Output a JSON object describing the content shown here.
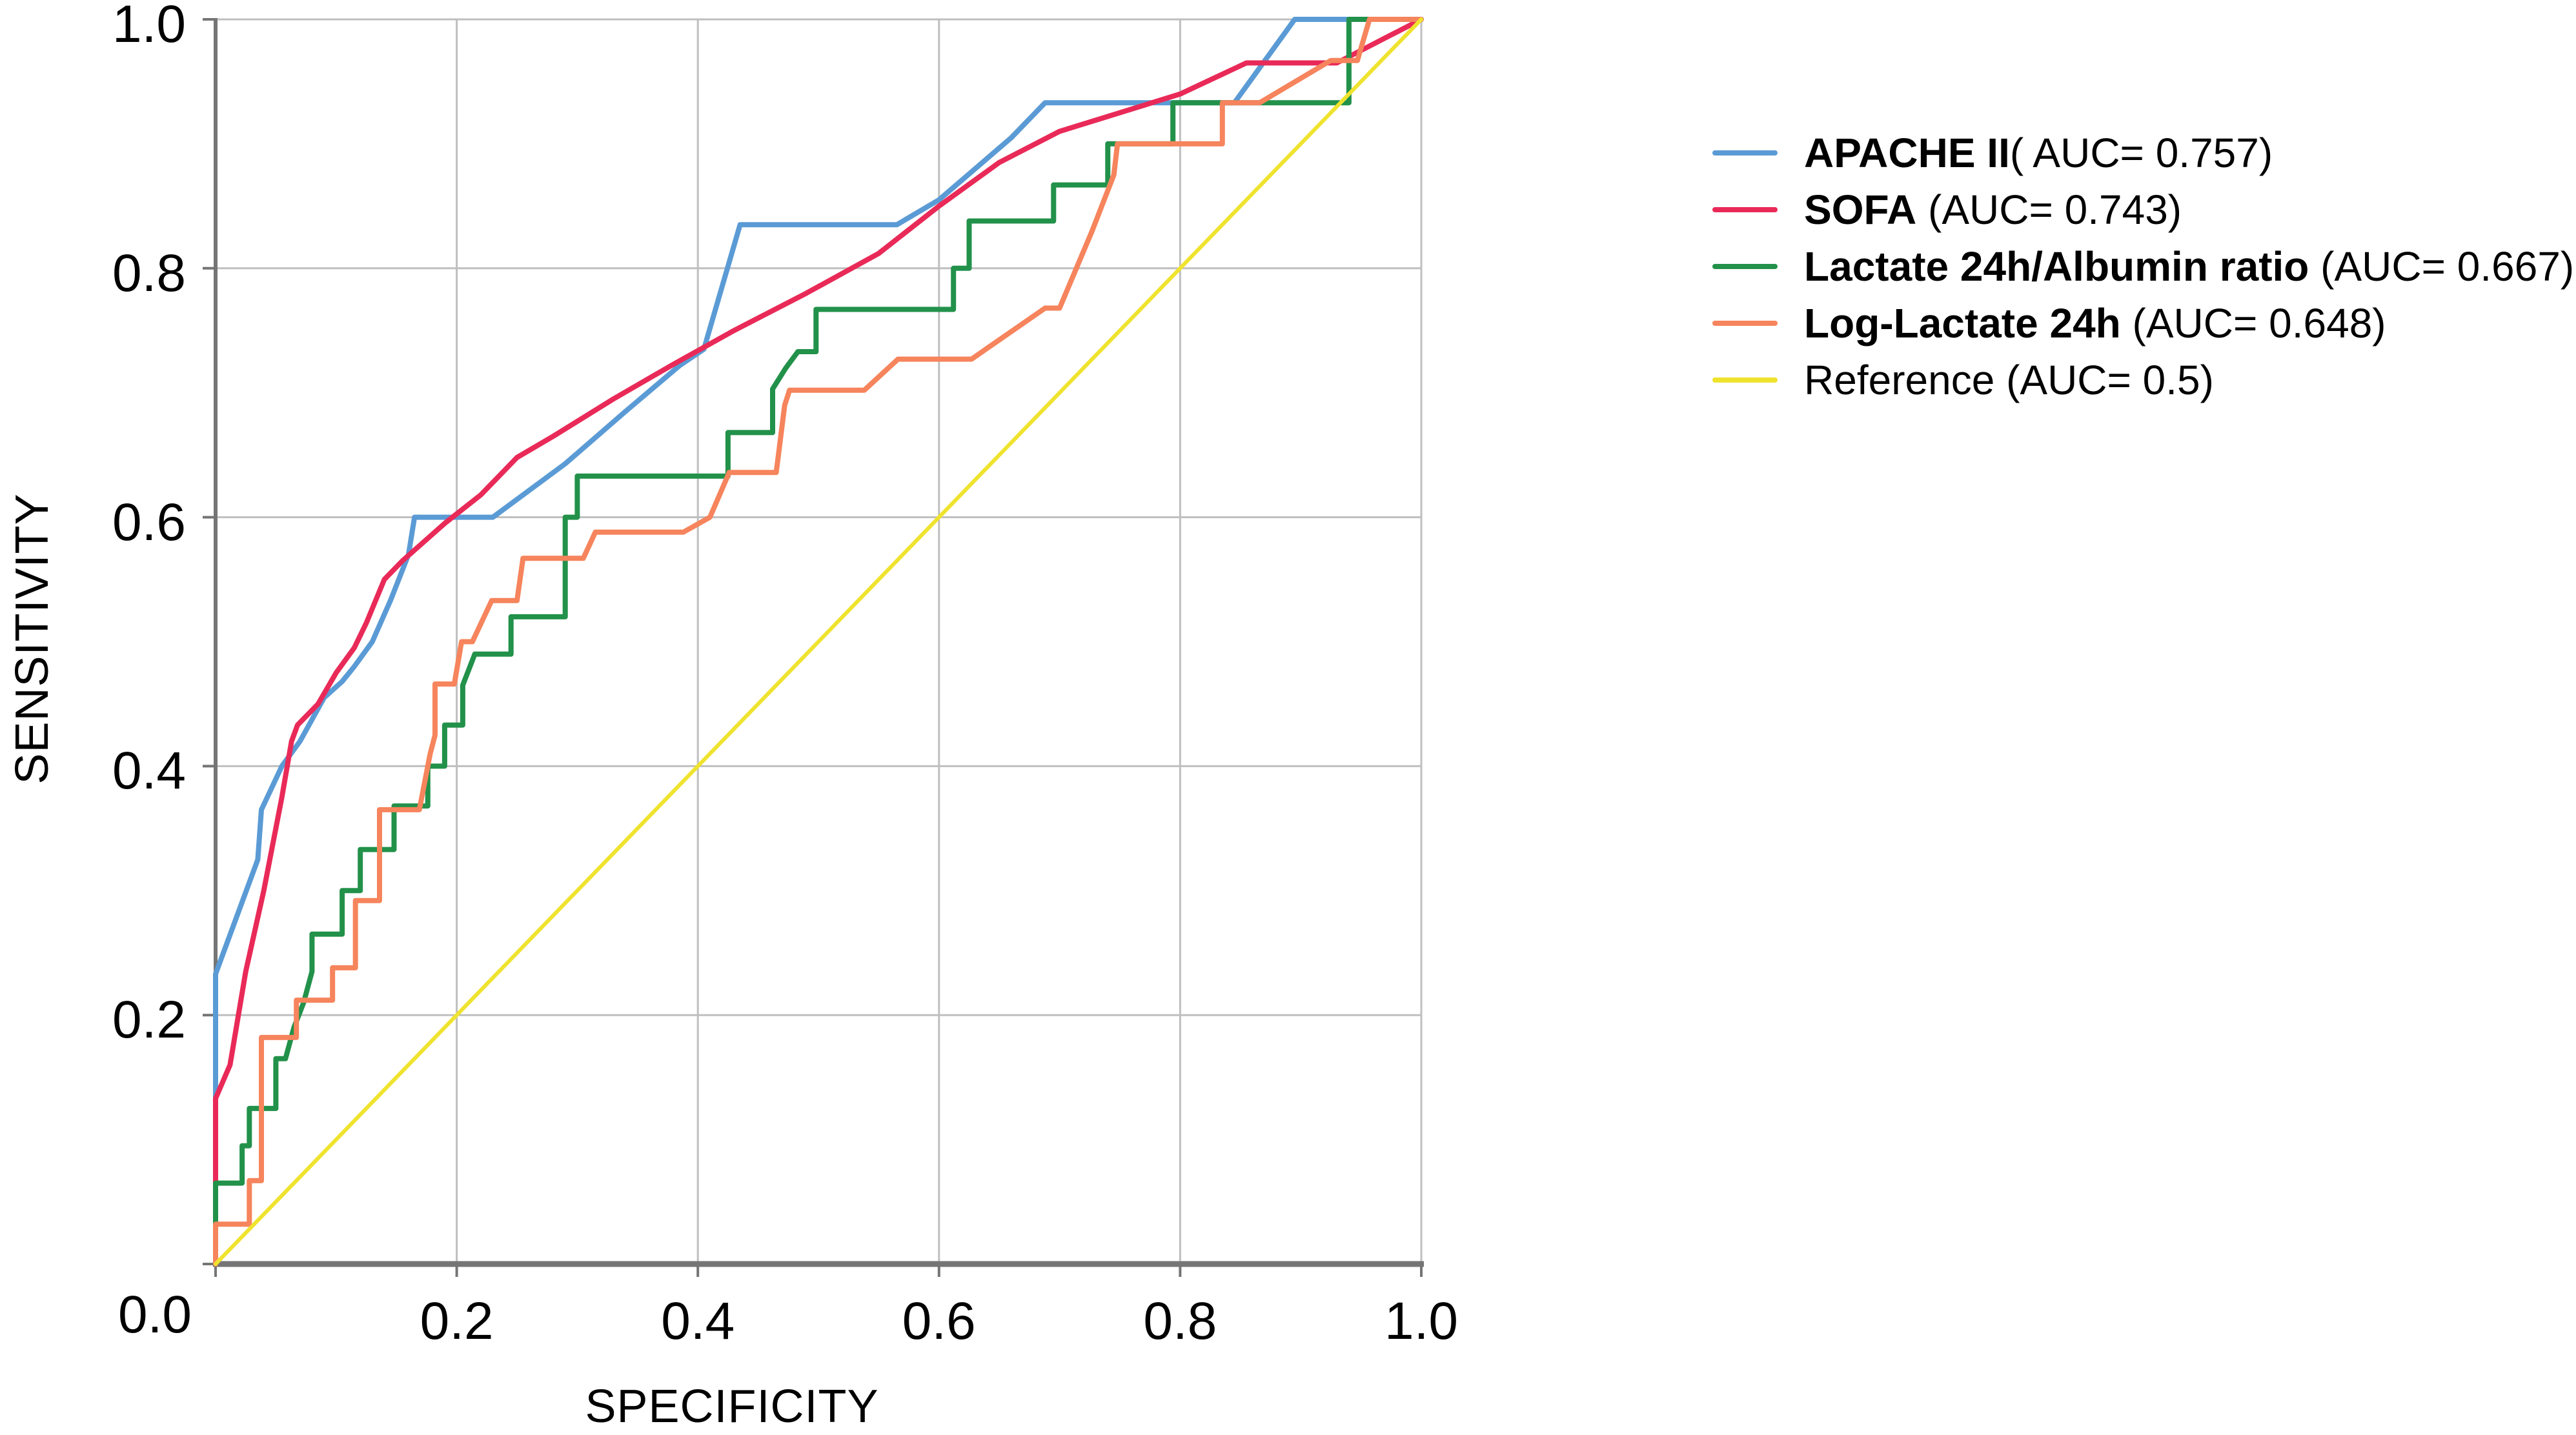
{
  "figure": {
    "background": "#ffffff",
    "kind": "ROC curve comparison plot"
  },
  "chart_data": {
    "type": "line",
    "subtype": "roc-curves",
    "title": "",
    "xlabel": "SPECIFICITY",
    "ylabel": "SENSITIVITY",
    "xlim": [
      0,
      1
    ],
    "ylim": [
      0,
      1
    ],
    "grid": true,
    "x_tick_labels": [
      "0.2",
      "0.4",
      "0.6",
      "0.8",
      "1.0"
    ],
    "x_tick_values": [
      0.2,
      0.4,
      0.6,
      0.8,
      1.0
    ],
    "y_tick_labels": [
      "1.0",
      "0.8",
      "0.6",
      "0.4",
      "0.2"
    ],
    "y_tick_values": [
      1.0,
      0.8,
      0.6,
      0.4,
      0.2
    ],
    "origin_label": "0.0",
    "legend_position": "right-outside",
    "colors": {
      "grid": "#bfbfbf",
      "axis": "#757575",
      "text": "#000000",
      "background": "#ffffff"
    },
    "series": [
      {
        "name": "APACHE II",
        "auc": 0.757,
        "legend_bold": "APACHE II",
        "legend_rest": "( AUC= 0.757)",
        "color": "#5b9bd5",
        "stroke_width": 8,
        "points": [
          [
            0,
            0
          ],
          [
            0,
            0.233
          ],
          [
            0.035,
            0.325
          ],
          [
            0.038,
            0.365
          ],
          [
            0.055,
            0.4
          ],
          [
            0.07,
            0.42
          ],
          [
            0.09,
            0.455
          ],
          [
            0.105,
            0.468
          ],
          [
            0.115,
            0.48
          ],
          [
            0.13,
            0.5
          ],
          [
            0.145,
            0.533
          ],
          [
            0.16,
            0.57
          ],
          [
            0.165,
            0.6
          ],
          [
            0.23,
            0.6
          ],
          [
            0.29,
            0.643
          ],
          [
            0.34,
            0.685
          ],
          [
            0.385,
            0.722
          ],
          [
            0.405,
            0.735
          ],
          [
            0.435,
            0.835
          ],
          [
            0.565,
            0.835
          ],
          [
            0.6,
            0.855
          ],
          [
            0.66,
            0.905
          ],
          [
            0.688,
            0.933
          ],
          [
            0.845,
            0.933
          ],
          [
            0.895,
            1
          ],
          [
            1,
            1
          ]
        ]
      },
      {
        "name": "SOFA",
        "auc": 0.743,
        "legend_bold": "SOFA",
        "legend_rest": " (AUC= 0.743)",
        "color": "#e92a58",
        "stroke_width": 8,
        "points": [
          [
            0,
            0
          ],
          [
            0,
            0.133
          ],
          [
            0.012,
            0.16
          ],
          [
            0.025,
            0.235
          ],
          [
            0.04,
            0.3
          ],
          [
            0.055,
            0.375
          ],
          [
            0.063,
            0.42
          ],
          [
            0.068,
            0.433
          ],
          [
            0.085,
            0.45
          ],
          [
            0.1,
            0.475
          ],
          [
            0.115,
            0.495
          ],
          [
            0.125,
            0.515
          ],
          [
            0.14,
            0.55
          ],
          [
            0.155,
            0.565
          ],
          [
            0.19,
            0.595
          ],
          [
            0.22,
            0.618
          ],
          [
            0.25,
            0.648
          ],
          [
            0.28,
            0.665
          ],
          [
            0.33,
            0.695
          ],
          [
            0.38,
            0.723
          ],
          [
            0.43,
            0.75
          ],
          [
            0.49,
            0.78
          ],
          [
            0.55,
            0.812
          ],
          [
            0.6,
            0.85
          ],
          [
            0.65,
            0.885
          ],
          [
            0.7,
            0.91
          ],
          [
            0.75,
            0.925
          ],
          [
            0.8,
            0.94
          ],
          [
            0.855,
            0.965
          ],
          [
            0.93,
            0.965
          ],
          [
            1,
            1
          ]
        ]
      },
      {
        "name": "Lactate 24h/Albumin ratio",
        "auc": 0.667,
        "legend_bold": "Lactate 24h/Albumin ratio",
        "legend_rest": " (AUC= 0.667)",
        "color": "#22914a",
        "stroke_width": 8,
        "points": [
          [
            0,
            0
          ],
          [
            0,
            0.065
          ],
          [
            0.022,
            0.065
          ],
          [
            0.022,
            0.095
          ],
          [
            0.028,
            0.095
          ],
          [
            0.028,
            0.125
          ],
          [
            0.05,
            0.125
          ],
          [
            0.05,
            0.165
          ],
          [
            0.058,
            0.165
          ],
          [
            0.065,
            0.19
          ],
          [
            0.073,
            0.21
          ],
          [
            0.08,
            0.235
          ],
          [
            0.08,
            0.265
          ],
          [
            0.105,
            0.265
          ],
          [
            0.105,
            0.3
          ],
          [
            0.12,
            0.3
          ],
          [
            0.12,
            0.333
          ],
          [
            0.148,
            0.333
          ],
          [
            0.148,
            0.368
          ],
          [
            0.176,
            0.368
          ],
          [
            0.176,
            0.4
          ],
          [
            0.19,
            0.4
          ],
          [
            0.19,
            0.433
          ],
          [
            0.205,
            0.433
          ],
          [
            0.205,
            0.465
          ],
          [
            0.215,
            0.49
          ],
          [
            0.245,
            0.49
          ],
          [
            0.245,
            0.52
          ],
          [
            0.29,
            0.52
          ],
          [
            0.29,
            0.6
          ],
          [
            0.3,
            0.6
          ],
          [
            0.3,
            0.633
          ],
          [
            0.425,
            0.633
          ],
          [
            0.425,
            0.668
          ],
          [
            0.462,
            0.668
          ],
          [
            0.462,
            0.703
          ],
          [
            0.473,
            0.72
          ],
          [
            0.483,
            0.733
          ],
          [
            0.498,
            0.733
          ],
          [
            0.498,
            0.767
          ],
          [
            0.612,
            0.767
          ],
          [
            0.612,
            0.8
          ],
          [
            0.625,
            0.8
          ],
          [
            0.625,
            0.838
          ],
          [
            0.695,
            0.838
          ],
          [
            0.695,
            0.867
          ],
          [
            0.74,
            0.867
          ],
          [
            0.74,
            0.9
          ],
          [
            0.794,
            0.9
          ],
          [
            0.794,
            0.933
          ],
          [
            0.94,
            0.933
          ],
          [
            0.94,
            1
          ],
          [
            1,
            1
          ]
        ]
      },
      {
        "name": "Log-Lactate 24h",
        "auc": 0.648,
        "legend_bold": "Log-Lactate 24h",
        "legend_rest": " (AUC= 0.648)",
        "color": "#f6845c",
        "stroke_width": 8,
        "points": [
          [
            0,
            0
          ],
          [
            0,
            0.032
          ],
          [
            0.028,
            0.032
          ],
          [
            0.028,
            0.067
          ],
          [
            0.038,
            0.067
          ],
          [
            0.038,
            0.182
          ],
          [
            0.067,
            0.182
          ],
          [
            0.067,
            0.212
          ],
          [
            0.097,
            0.212
          ],
          [
            0.097,
            0.238
          ],
          [
            0.116,
            0.238
          ],
          [
            0.116,
            0.292
          ],
          [
            0.136,
            0.292
          ],
          [
            0.136,
            0.365
          ],
          [
            0.169,
            0.365
          ],
          [
            0.178,
            0.41
          ],
          [
            0.182,
            0.425
          ],
          [
            0.182,
            0.466
          ],
          [
            0.198,
            0.466
          ],
          [
            0.204,
            0.5
          ],
          [
            0.213,
            0.5
          ],
          [
            0.229,
            0.533
          ],
          [
            0.25,
            0.533
          ],
          [
            0.255,
            0.567
          ],
          [
            0.305,
            0.567
          ],
          [
            0.315,
            0.588
          ],
          [
            0.388,
            0.588
          ],
          [
            0.41,
            0.6
          ],
          [
            0.426,
            0.636
          ],
          [
            0.465,
            0.636
          ],
          [
            0.472,
            0.69
          ],
          [
            0.476,
            0.702
          ],
          [
            0.538,
            0.702
          ],
          [
            0.566,
            0.727
          ],
          [
            0.627,
            0.727
          ],
          [
            0.688,
            0.768
          ],
          [
            0.7,
            0.768
          ],
          [
            0.727,
            0.83
          ],
          [
            0.745,
            0.875
          ],
          [
            0.748,
            0.9
          ],
          [
            0.835,
            0.9
          ],
          [
            0.835,
            0.933
          ],
          [
            0.866,
            0.933
          ],
          [
            0.925,
            0.967
          ],
          [
            0.947,
            0.967
          ],
          [
            0.957,
            1
          ],
          [
            1,
            1
          ]
        ]
      },
      {
        "name": "Reference",
        "auc": 0.5,
        "legend_bold": "",
        "legend_rest": "Reference (AUC= 0.5)",
        "color": "#efe32e",
        "stroke_width": 6,
        "points": [
          [
            0,
            0
          ],
          [
            1,
            1
          ]
        ]
      }
    ]
  }
}
